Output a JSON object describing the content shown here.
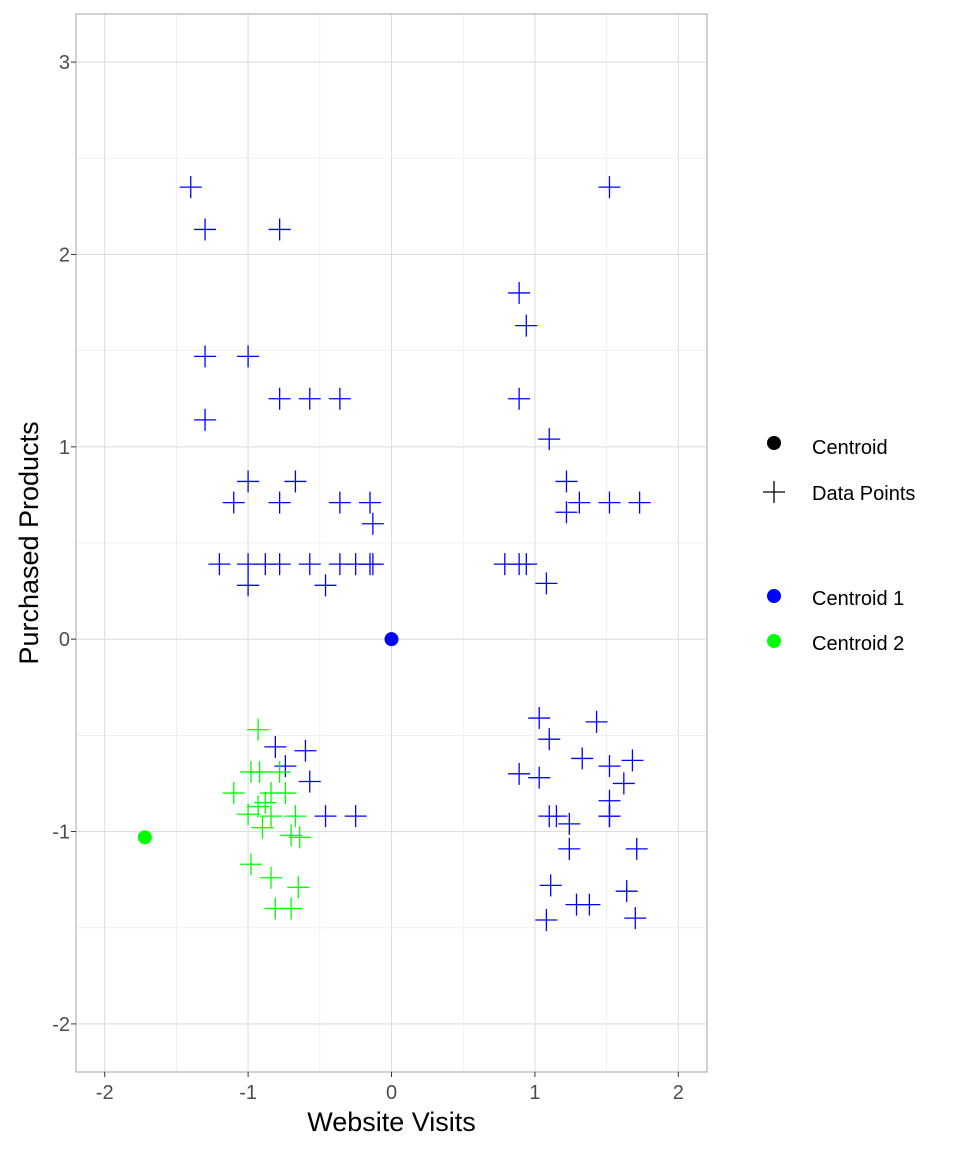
{
  "chart_data": {
    "type": "scatter",
    "xlabel": "Website Visits",
    "ylabel": "Purchased Products",
    "xlim": [
      -2.2,
      2.2
    ],
    "ylim": [
      -2.25,
      3.25
    ],
    "xticks": [
      -2,
      -1,
      0,
      1,
      2
    ],
    "yticks": [
      -2,
      -1,
      0,
      1,
      2,
      3
    ],
    "xtick_labels": [
      "-2",
      "-1",
      "0",
      "1",
      "2"
    ],
    "ytick_labels": [
      "-2",
      "-1",
      "0",
      "1",
      "2",
      "3"
    ],
    "grid": true,
    "legend_position": "right",
    "legend": {
      "shape_entries": [
        {
          "label": "Centroid",
          "marker": "circle",
          "color": "#000000"
        },
        {
          "label": "Data Points",
          "marker": "plus",
          "color": "#000000"
        }
      ],
      "color_entries": [
        {
          "label": "Centroid 1",
          "marker": "circle",
          "color": "#0000ff"
        },
        {
          "label": "Centroid 2",
          "marker": "circle",
          "color": "#00ff00"
        }
      ]
    },
    "series": [
      {
        "name": "Centroid 1",
        "color": "#0000ff",
        "marker": "plus",
        "points": [
          [
            -1.4,
            2.35
          ],
          [
            -1.3,
            2.13
          ],
          [
            -0.78,
            2.13
          ],
          [
            1.52,
            2.35
          ],
          [
            -1.3,
            1.47
          ],
          [
            -1.0,
            1.47
          ],
          [
            0.89,
            1.8
          ],
          [
            0.94,
            1.63
          ],
          [
            -1.3,
            1.14
          ],
          [
            -0.78,
            1.25
          ],
          [
            -0.57,
            1.25
          ],
          [
            -0.36,
            1.25
          ],
          [
            0.89,
            1.25
          ],
          [
            1.1,
            1.04
          ],
          [
            -1.0,
            0.82
          ],
          [
            -0.67,
            0.82
          ],
          [
            1.22,
            0.82
          ],
          [
            -1.1,
            0.71
          ],
          [
            -0.78,
            0.71
          ],
          [
            -0.36,
            0.71
          ],
          [
            -0.15,
            0.71
          ],
          [
            1.31,
            0.71
          ],
          [
            1.52,
            0.71
          ],
          [
            1.73,
            0.71
          ],
          [
            1.22,
            0.66
          ],
          [
            -0.13,
            0.6
          ],
          [
            -1.2,
            0.39
          ],
          [
            -1.0,
            0.39
          ],
          [
            -0.88,
            0.39
          ],
          [
            -0.78,
            0.39
          ],
          [
            -0.57,
            0.39
          ],
          [
            -0.36,
            0.39
          ],
          [
            -0.25,
            0.39
          ],
          [
            -0.15,
            0.39
          ],
          [
            -0.13,
            0.39
          ],
          [
            0.79,
            0.39
          ],
          [
            0.89,
            0.39
          ],
          [
            0.94,
            0.39
          ],
          [
            -1.0,
            0.28
          ],
          [
            -0.46,
            0.28
          ],
          [
            1.08,
            0.29
          ],
          [
            1.03,
            -0.41
          ],
          [
            1.1,
            -0.52
          ],
          [
            1.43,
            -0.43
          ],
          [
            1.33,
            -0.62
          ],
          [
            1.52,
            -0.66
          ],
          [
            1.68,
            -0.63
          ],
          [
            1.62,
            -0.75
          ],
          [
            0.89,
            -0.7
          ],
          [
            1.03,
            -0.72
          ],
          [
            1.52,
            -0.84
          ],
          [
            1.52,
            -0.92
          ],
          [
            1.1,
            -0.92
          ],
          [
            1.15,
            -0.92
          ],
          [
            1.24,
            -0.96
          ],
          [
            1.52,
            -0.92
          ],
          [
            -0.81,
            -0.56
          ],
          [
            -0.6,
            -0.58
          ],
          [
            -0.74,
            -0.66
          ],
          [
            -0.57,
            -0.74
          ],
          [
            -0.46,
            -0.92
          ],
          [
            -0.25,
            -0.92
          ],
          [
            1.24,
            -1.09
          ],
          [
            1.71,
            -1.09
          ],
          [
            1.11,
            -1.28
          ],
          [
            1.64,
            -1.31
          ],
          [
            1.29,
            -1.38
          ],
          [
            1.38,
            -1.38
          ],
          [
            1.08,
            -1.46
          ],
          [
            1.7,
            -1.45
          ]
        ]
      },
      {
        "name": "Centroid 2",
        "color": "#00ff00",
        "marker": "plus",
        "points": [
          [
            -0.93,
            -0.47
          ],
          [
            -0.98,
            -0.69
          ],
          [
            -0.92,
            -0.69
          ],
          [
            -0.78,
            -0.69
          ],
          [
            -1.1,
            -0.8
          ],
          [
            -0.84,
            -0.8
          ],
          [
            -0.74,
            -0.8
          ],
          [
            -0.88,
            -0.85
          ],
          [
            -0.93,
            -0.87
          ],
          [
            -1.0,
            -0.91
          ],
          [
            -0.84,
            -0.92
          ],
          [
            -0.67,
            -0.92
          ],
          [
            -0.9,
            -0.98
          ],
          [
            -0.7,
            -1.02
          ],
          [
            -0.64,
            -1.03
          ],
          [
            -0.98,
            -1.17
          ],
          [
            -0.84,
            -1.24
          ],
          [
            -0.65,
            -1.29
          ],
          [
            -0.81,
            -1.4
          ],
          [
            -0.7,
            -1.4
          ]
        ]
      }
    ],
    "centroids": [
      {
        "name": "Centroid 1",
        "x": 0.0,
        "y": 0.0,
        "color": "#0000ff"
      },
      {
        "name": "Centroid 2",
        "x": -1.72,
        "y": -1.03,
        "color": "#00ff00"
      }
    ]
  }
}
